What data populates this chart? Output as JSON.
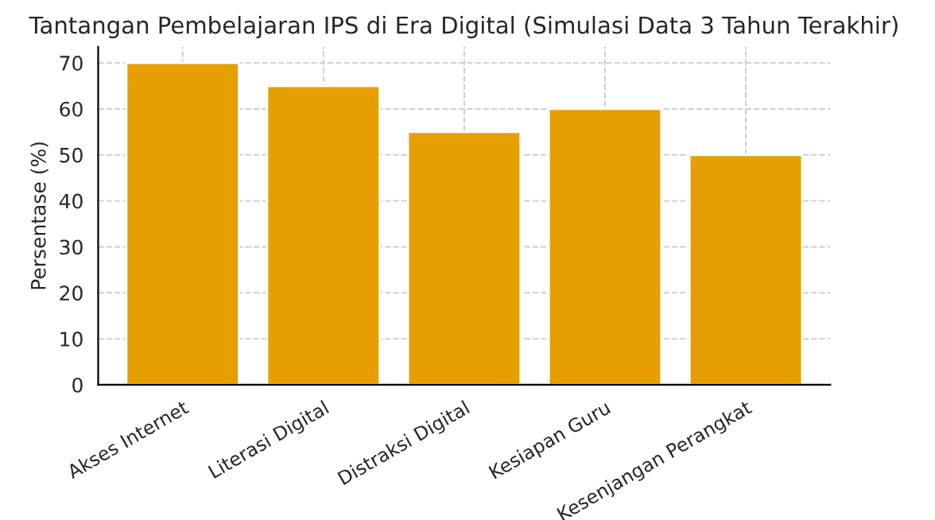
{
  "chart_data": {
    "type": "bar",
    "title": "Tantangan Pembelajaran IPS di Era Digital (Simulasi Data 3 Tahun Terakhir)",
    "ylabel": "Persentase (%)",
    "categories": [
      "Akses Internet",
      "Literasi Digital",
      "Distraksi Digital",
      "Kesiapan Guru",
      "Kesenjangan Perangkat"
    ],
    "values": [
      70,
      65,
      55,
      60,
      50
    ],
    "color": "#e69f00",
    "ylim": [
      0,
      73.5
    ],
    "yticks": [
      0,
      10,
      20,
      30,
      40,
      50,
      60,
      70
    ],
    "grid": true
  }
}
